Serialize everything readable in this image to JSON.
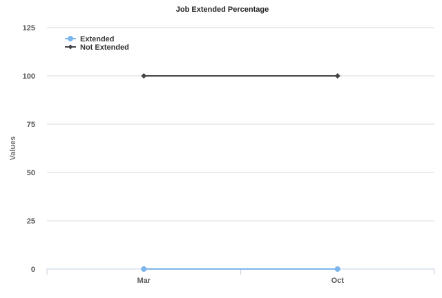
{
  "chart_data": {
    "type": "line",
    "title": "Job Extended Percentage",
    "xlabel": "",
    "ylabel": "Values",
    "categories": [
      "Mar",
      "Oct"
    ],
    "ylim": [
      0,
      125
    ],
    "yticks": [
      0,
      25,
      50,
      75,
      100,
      125
    ],
    "grid": true,
    "legend_position": "top-left",
    "series": [
      {
        "name": "Extended",
        "values": [
          0,
          0
        ],
        "color": "#7cb5ec",
        "marker": "circle"
      },
      {
        "name": "Not Extended",
        "values": [
          100,
          100
        ],
        "color": "#434348",
        "marker": "diamond"
      }
    ]
  }
}
